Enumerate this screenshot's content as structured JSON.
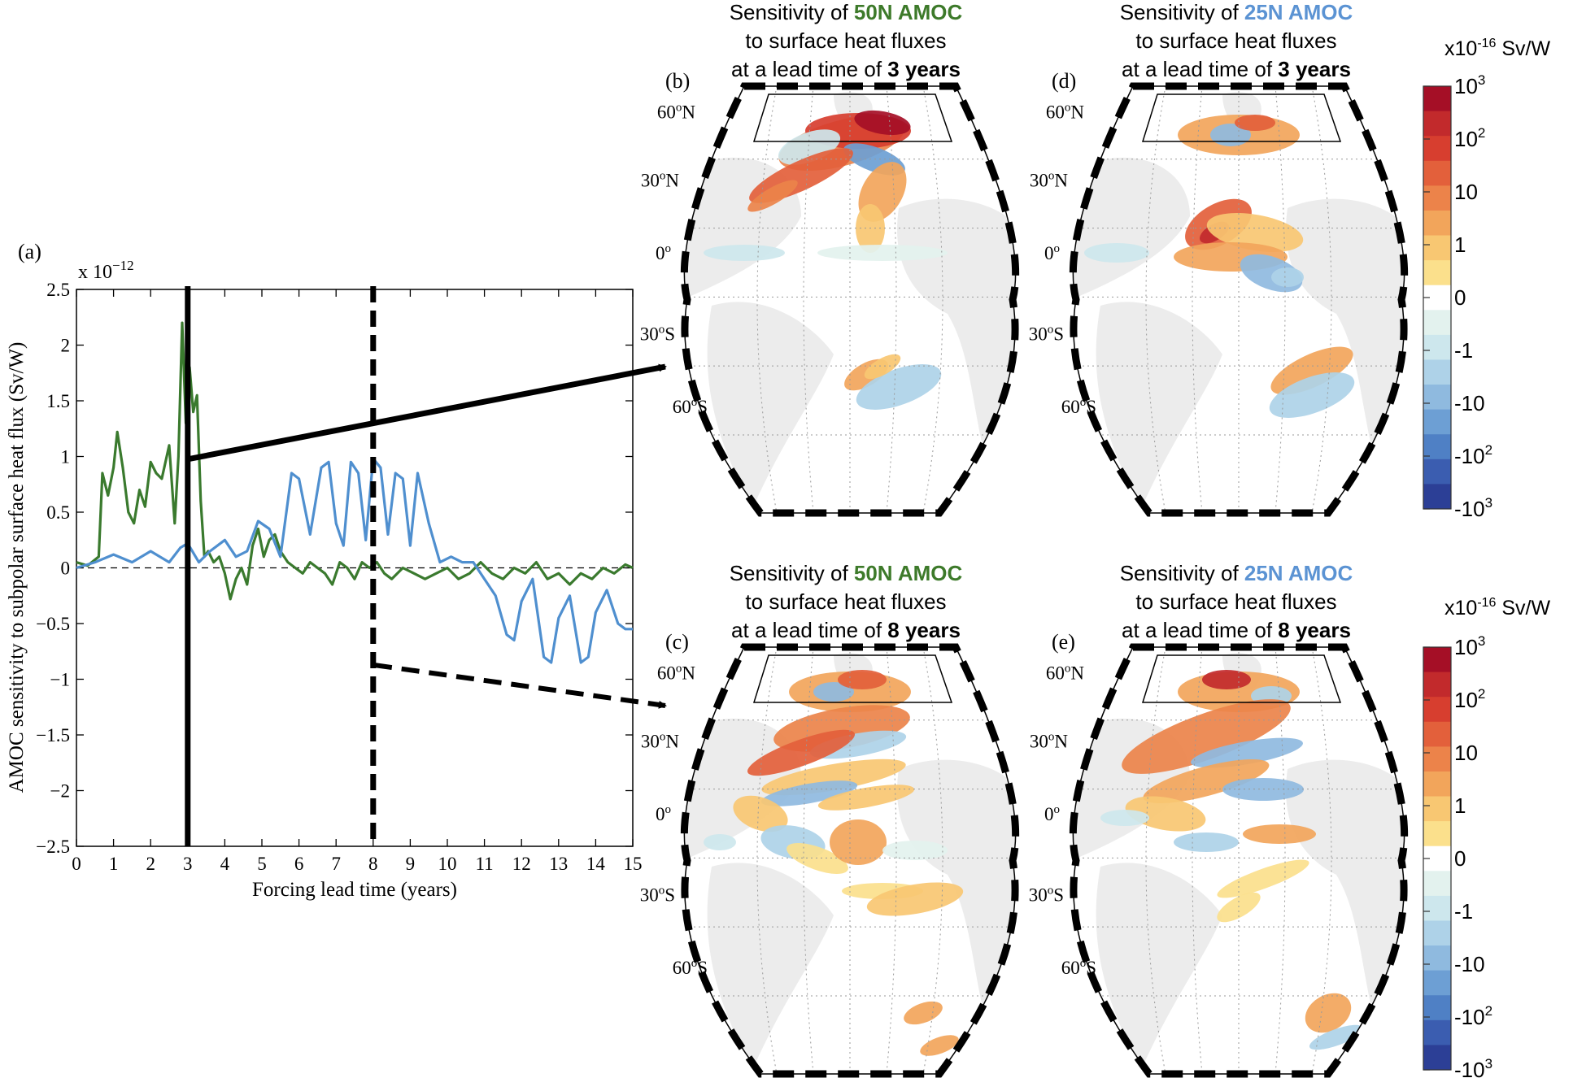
{
  "colors": {
    "green": "#3a7a2e",
    "blue": "#4f8fcf",
    "land": "#ececec",
    "title_green": "#3d7a2a",
    "title_blue": "#5b93d3"
  },
  "chart_data": [
    {
      "type": "line",
      "panel_label": "(a)",
      "xlabel": "Forcing lead time (years)",
      "ylabel": "AMOC sensitivity to subpolar surface heat flux (Sv/W)",
      "y_multiplier": "x 10",
      "y_multiplier_exp": "−12",
      "xlim": [
        0,
        15
      ],
      "ylim": [
        -2.5,
        2.5
      ],
      "x_ticks": [
        0,
        1,
        2,
        3,
        4,
        5,
        6,
        7,
        8,
        9,
        10,
        11,
        12,
        13,
        14,
        15
      ],
      "x_tick_labels": [
        "0",
        "1",
        "2",
        "3",
        "4",
        "5",
        "6",
        "7",
        "8",
        "9",
        "10",
        "11",
        "12",
        "13",
        "14",
        "15"
      ],
      "y_ticks": [
        -2.5,
        -2,
        -1.5,
        -1,
        -0.5,
        0,
        0.5,
        1,
        1.5,
        2,
        2.5
      ],
      "y_tick_labels": [
        "−2.5",
        "−2",
        "−1.5",
        "−1",
        "−0.5",
        "0",
        "0.5",
        "1",
        "1.5",
        "2",
        "2.5"
      ],
      "markers": [
        {
          "x": 3,
          "style": "solid",
          "label": "3 years"
        },
        {
          "x": 8,
          "style": "dashed",
          "label": "8 years"
        }
      ],
      "series": [
        {
          "name": "50N AMOC",
          "color": "#3a7a2e",
          "x": [
            0,
            0.3,
            0.6,
            0.7,
            0.85,
            1.0,
            1.1,
            1.25,
            1.4,
            1.55,
            1.7,
            1.85,
            2.0,
            2.15,
            2.3,
            2.5,
            2.65,
            2.75,
            2.85,
            2.95,
            3.05,
            3.15,
            3.25,
            3.35,
            3.45,
            3.55,
            3.7,
            3.85,
            4.0,
            4.15,
            4.3,
            4.45,
            4.6,
            4.75,
            4.9,
            5.05,
            5.2,
            5.35,
            5.5,
            5.7,
            5.9,
            6.1,
            6.3,
            6.5,
            6.7,
            6.9,
            7.1,
            7.3,
            7.5,
            7.7,
            7.9,
            8.1,
            8.3,
            8.5,
            8.8,
            9.1,
            9.4,
            9.7,
            10.0,
            10.3,
            10.6,
            10.9,
            11.2,
            11.5,
            11.8,
            12.1,
            12.4,
            12.7,
            13.0,
            13.3,
            13.6,
            13.9,
            14.2,
            14.5,
            14.8,
            15.0
          ],
          "values": [
            0.05,
            0.02,
            0.1,
            0.85,
            0.65,
            0.9,
            1.22,
            0.9,
            0.5,
            0.4,
            0.7,
            0.55,
            0.95,
            0.85,
            0.8,
            1.1,
            0.4,
            1.0,
            2.2,
            1.3,
            1.8,
            1.4,
            1.55,
            0.6,
            0.1,
            0.15,
            0.05,
            0.1,
            -0.05,
            -0.28,
            -0.1,
            0.0,
            -0.15,
            0.2,
            0.35,
            0.1,
            0.25,
            0.3,
            0.15,
            0.05,
            0.0,
            -0.05,
            0.05,
            0.0,
            -0.05,
            -0.15,
            0.05,
            0.0,
            -0.1,
            0.05,
            0.0,
            0.05,
            -0.05,
            -0.1,
            0.0,
            -0.05,
            -0.1,
            -0.05,
            0.0,
            -0.1,
            -0.05,
            0.05,
            -0.05,
            -0.1,
            0.0,
            -0.05,
            0.05,
            -0.1,
            -0.05,
            -0.15,
            -0.05,
            -0.1,
            0.0,
            -0.05,
            0.03,
            0.0
          ]
        },
        {
          "name": "25N AMOC",
          "color": "#4f8fcf",
          "x": [
            0,
            0.5,
            1.0,
            1.5,
            2.0,
            2.5,
            2.8,
            3.0,
            3.3,
            3.6,
            4.0,
            4.3,
            4.6,
            4.9,
            5.2,
            5.5,
            5.8,
            6.0,
            6.3,
            6.6,
            6.8,
            7.0,
            7.2,
            7.4,
            7.6,
            7.8,
            8.0,
            8.2,
            8.4,
            8.6,
            8.8,
            9.0,
            9.2,
            9.5,
            9.8,
            10.1,
            10.4,
            10.7,
            11.0,
            11.3,
            11.6,
            11.8,
            12.0,
            12.3,
            12.6,
            12.8,
            13.0,
            13.3,
            13.6,
            13.8,
            14.0,
            14.3,
            14.6,
            14.8,
            15.0
          ],
          "values": [
            0.0,
            0.05,
            0.12,
            0.05,
            0.15,
            0.05,
            0.18,
            0.22,
            0.05,
            0.15,
            0.25,
            0.1,
            0.15,
            0.42,
            0.35,
            0.1,
            0.85,
            0.8,
            0.3,
            0.9,
            0.95,
            0.4,
            0.2,
            0.95,
            0.85,
            0.25,
            0.98,
            0.9,
            0.3,
            0.85,
            0.8,
            0.2,
            0.85,
            0.4,
            0.05,
            0.1,
            0.05,
            0.05,
            -0.1,
            -0.25,
            -0.6,
            -0.65,
            -0.3,
            -0.1,
            -0.8,
            -0.85,
            -0.45,
            -0.25,
            -0.85,
            -0.8,
            -0.4,
            -0.2,
            -0.5,
            -0.55,
            -0.55
          ]
        }
      ]
    },
    {
      "type": "heatmap",
      "note": "Map panels (b)-(e): sensitivity of AMOC to surface heat fluxes; spatial fields approximated as blobs",
      "latitude_labels": [
        "60",
        "N",
        "30",
        "N",
        "0",
        "o",
        "30",
        "S",
        "60",
        "S"
      ],
      "panels": [
        {
          "label": "(b)",
          "title_pre": "Sensitivity of ",
          "title_hl": "50N AMOC",
          "hl_color": "#3d7a2a",
          "line2": "to surface heat fluxes",
          "line3_pre": "at a lead time of ",
          "line3_bold": "3 years"
        },
        {
          "label": "(d)",
          "title_pre": "Sensitivity of ",
          "title_hl": "25N AMOC",
          "hl_color": "#5b93d3",
          "line2": "to surface heat fluxes",
          "line3_pre": "at a lead time of ",
          "line3_bold": "3 years"
        },
        {
          "label": "(c)",
          "title_pre": "Sensitivity of ",
          "title_hl": "50N AMOC",
          "hl_color": "#3d7a2a",
          "line2": "to surface heat fluxes",
          "line3_pre": "at a lead time of ",
          "line3_bold": "8 years"
        },
        {
          "label": "(e)",
          "title_pre": "Sensitivity of ",
          "title_hl": "25N AMOC",
          "hl_color": "#5b93d3",
          "line2": "to surface heat fluxes",
          "line3_pre": "at a lead time of ",
          "line3_bold": "8 years"
        }
      ],
      "colorbar": {
        "unit_prefix": "x10",
        "unit_exp": "-16",
        "unit_suffix": " Sv/W",
        "colors": [
          "#a50f26",
          "#c22a2c",
          "#d73e2f",
          "#e3603b",
          "#ec834a",
          "#f2a55b",
          "#f8c772",
          "#fbe08c",
          "#ffffff",
          "#e3f2ee",
          "#cde7ed",
          "#aed2e8",
          "#8fbadf",
          "#6d9fd4",
          "#4f80c5",
          "#3b5db0",
          "#2c3f96"
        ],
        "tick_labels": [
          {
            "base": "10",
            "exp": "3"
          },
          {
            "base": "10",
            "exp": "2"
          },
          {
            "base": "10",
            "exp": ""
          },
          {
            "base": "1",
            "exp": ""
          },
          {
            "base": "0",
            "exp": ""
          },
          {
            "base": "-1",
            "exp": ""
          },
          {
            "base": "-10",
            "exp": ""
          },
          {
            "base": "-10",
            "exp": "2"
          },
          {
            "base": "-10",
            "exp": "3"
          }
        ]
      }
    }
  ]
}
